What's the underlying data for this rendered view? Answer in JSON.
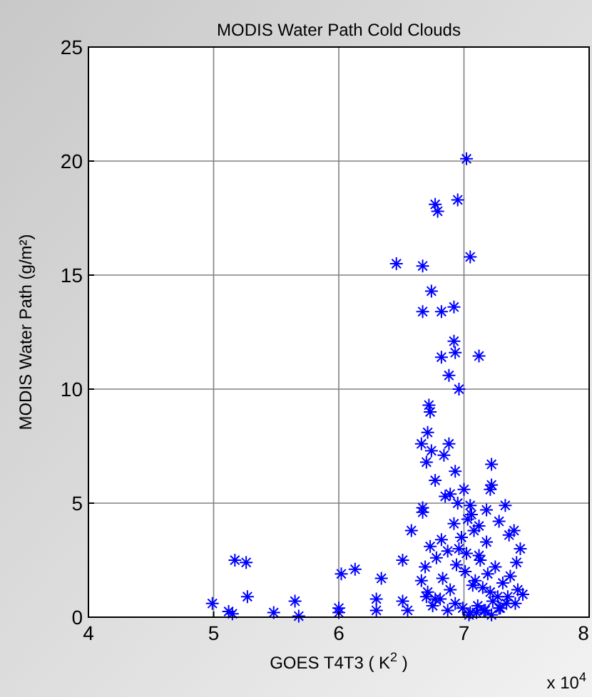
{
  "chart_data": {
    "type": "scatter",
    "title": "MODIS Water Path Cold Clouds",
    "xlabel": "GOES T4T3 ( K$^{2}$ )",
    "ylabel": "MODIS Water Path (g/m²)",
    "annotations": [
      "x 10$^{4}$"
    ],
    "xlim": [
      4,
      8
    ],
    "ylim": [
      0,
      25
    ],
    "xticks": [
      4,
      5,
      6,
      7,
      8
    ],
    "yticks": [
      0,
      5,
      10,
      15,
      20,
      25
    ],
    "grid": true,
    "marker": "cross",
    "series": [
      {
        "color": "#0000ff",
        "x": [
          7.02,
          6.77,
          6.79,
          6.95,
          7.05,
          6.46,
          6.67,
          6.74,
          6.67,
          6.82,
          6.92,
          6.92,
          6.93,
          6.82,
          7.12,
          6.88,
          6.96,
          6.72,
          6.73,
          6.71,
          6.66,
          6.74,
          6.88,
          6.84,
          6.7,
          7.22,
          6.93,
          6.77,
          7.0,
          7.21,
          6.85,
          5.17,
          5.26,
          5.27,
          4.99,
          5.12,
          5.15,
          5.48,
          5.65,
          5.68,
          6.0,
          6.0,
          6.02,
          6.13,
          6.34,
          6.3,
          6.3,
          6.51,
          6.51,
          6.58,
          6.55,
          6.67,
          6.67,
          6.89,
          6.95,
          7.05,
          7.22,
          7.33,
          7.4,
          7.45,
          7.42,
          7.36,
          7.28,
          7.18,
          7.12,
          7.08,
          7.03,
          6.98,
          6.92,
          6.87,
          6.82,
          6.78,
          6.73,
          6.69,
          6.66,
          6.71,
          6.77,
          6.83,
          6.89,
          6.94,
          7.01,
          7.07,
          7.13,
          7.19,
          7.25,
          7.31,
          7.37,
          7.43,
          7.47,
          7.41,
          7.35,
          7.29,
          7.23,
          7.17,
          7.11,
          7.05,
          6.99,
          6.93,
          6.87,
          6.81,
          6.75,
          6.7,
          7.04,
          7.1,
          7.16,
          7.22,
          7.28,
          7.34,
          7.09,
          7.15,
          7.21,
          7.27,
          7.02,
          6.96,
          7.06,
          7.12,
          7.18
        ],
        "values": [
          20.1,
          18.1,
          17.8,
          18.3,
          15.8,
          15.5,
          15.4,
          14.3,
          13.4,
          13.4,
          13.6,
          12.1,
          11.6,
          11.4,
          11.45,
          10.6,
          10.0,
          9.3,
          9.0,
          8.1,
          7.6,
          7.3,
          7.6,
          7.1,
          6.8,
          6.7,
          6.4,
          6.0,
          5.6,
          5.6,
          5.3,
          2.5,
          2.4,
          0.9,
          0.6,
          0.25,
          0.15,
          0.2,
          0.7,
          0.05,
          0.4,
          0.2,
          1.9,
          2.1,
          1.7,
          0.8,
          0.3,
          2.5,
          0.7,
          3.8,
          0.3,
          4.8,
          4.6,
          5.4,
          5.0,
          4.9,
          5.8,
          4.9,
          3.8,
          3.0,
          2.4,
          3.6,
          4.2,
          3.3,
          2.7,
          3.8,
          4.3,
          3.5,
          4.1,
          2.9,
          3.4,
          2.6,
          3.1,
          2.2,
          1.6,
          1.1,
          0.8,
          1.7,
          1.2,
          2.3,
          2.0,
          1.4,
          2.5,
          1.9,
          2.2,
          1.5,
          1.8,
          1.2,
          1.0,
          0.6,
          0.9,
          0.4,
          0.7,
          0.3,
          0.5,
          0.2,
          0.4,
          0.6,
          0.3,
          0.8,
          0.5,
          0.9,
          0.1,
          0.2,
          0.3,
          0.1,
          0.4,
          0.6,
          1.6,
          1.3,
          1.1,
          0.9,
          2.8,
          3.0,
          4.5,
          4.0,
          4.7
        ]
      }
    ]
  }
}
